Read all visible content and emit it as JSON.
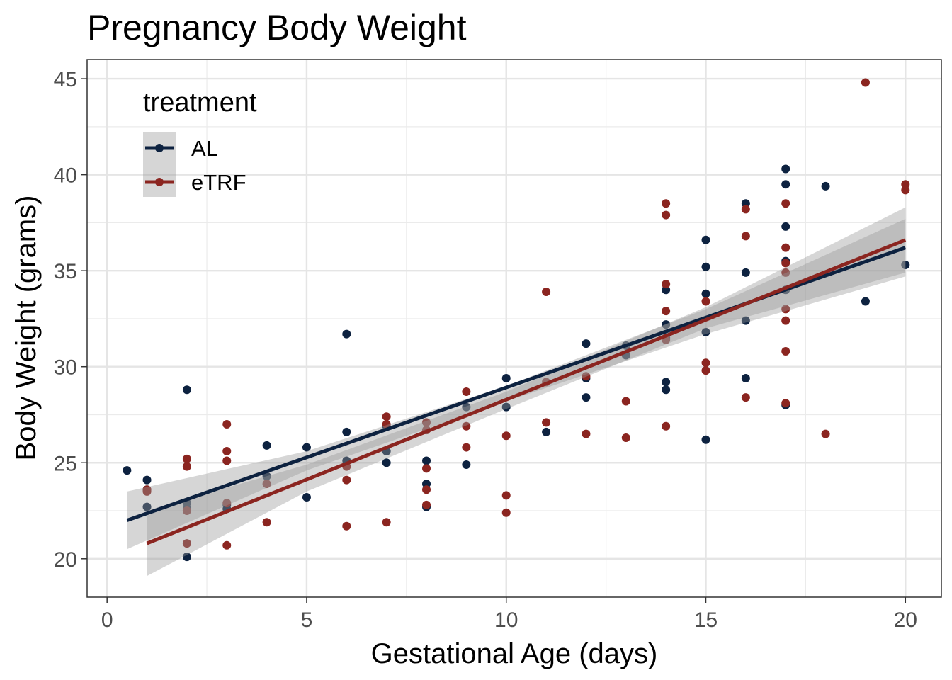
{
  "chart_data": {
    "type": "scatter",
    "title": "Pregnancy Body Weight",
    "xlabel": "Gestational Age (days)",
    "ylabel": "Body Weight (grams)",
    "xlim": [
      -0.5,
      20.9
    ],
    "ylim": [
      18,
      46
    ],
    "x_ticks": [
      0,
      5,
      10,
      15,
      20
    ],
    "y_ticks": [
      20,
      25,
      30,
      35,
      40,
      45
    ],
    "grid": true,
    "legend": {
      "title": "treatment",
      "placement": "top-left",
      "entries": [
        "AL",
        "eTRF"
      ]
    },
    "series": [
      {
        "name": "AL",
        "color": "#0d2240",
        "points": [
          [
            0.5,
            24.6
          ],
          [
            1,
            24.1
          ],
          [
            1,
            23.6
          ],
          [
            1,
            22.7
          ],
          [
            2,
            28.8
          ],
          [
            2,
            22.9
          ],
          [
            2,
            22.6
          ],
          [
            2,
            20.1
          ],
          [
            3,
            22.8
          ],
          [
            3,
            22.6
          ],
          [
            4,
            25.9
          ],
          [
            4,
            24.3
          ],
          [
            5,
            25.8
          ],
          [
            5,
            23.2
          ],
          [
            6,
            31.7
          ],
          [
            6,
            26.6
          ],
          [
            6,
            25.1
          ],
          [
            7,
            26.9
          ],
          [
            7,
            25.6
          ],
          [
            7,
            25.0
          ],
          [
            8,
            25.1
          ],
          [
            8,
            23.9
          ],
          [
            8,
            22.7
          ],
          [
            9,
            27.9
          ],
          [
            9,
            24.9
          ],
          [
            10,
            29.4
          ],
          [
            10,
            27.9
          ],
          [
            11,
            26.6
          ],
          [
            12,
            31.2
          ],
          [
            12,
            29.4
          ],
          [
            12,
            28.4
          ],
          [
            13,
            31.1
          ],
          [
            13,
            30.6
          ],
          [
            14,
            34.0
          ],
          [
            14,
            32.2
          ],
          [
            14,
            31.5
          ],
          [
            14,
            29.2
          ],
          [
            14,
            28.8
          ],
          [
            15,
            36.6
          ],
          [
            15,
            35.2
          ],
          [
            15,
            33.8
          ],
          [
            15,
            31.8
          ],
          [
            15,
            26.2
          ],
          [
            16,
            38.5
          ],
          [
            16,
            34.9
          ],
          [
            16,
            32.4
          ],
          [
            16,
            29.4
          ],
          [
            17,
            40.3
          ],
          [
            17,
            39.5
          ],
          [
            17,
            37.3
          ],
          [
            17,
            35.5
          ],
          [
            17,
            34.0
          ],
          [
            17,
            28.0
          ],
          [
            18,
            39.4
          ],
          [
            19,
            33.4
          ],
          [
            20,
            35.3
          ]
        ],
        "fit": {
          "x_start": 0.5,
          "x_end": 20,
          "y_start": 22.0,
          "y_end": 36.2
        },
        "band": {
          "x": [
            0.5,
            5,
            10,
            15,
            20
          ],
          "lower": [
            20.5,
            24.6,
            28.2,
            31.7,
            34.7
          ],
          "upper": [
            23.5,
            25.6,
            29.0,
            33.0,
            37.7
          ]
        }
      },
      {
        "name": "eTRF",
        "color": "#8b2520",
        "points": [
          [
            1,
            23.6
          ],
          [
            1,
            23.5
          ],
          [
            2,
            25.2
          ],
          [
            2,
            24.8
          ],
          [
            2,
            22.5
          ],
          [
            2,
            20.8
          ],
          [
            3,
            27.0
          ],
          [
            3,
            25.6
          ],
          [
            3,
            25.1
          ],
          [
            3,
            22.9
          ],
          [
            3,
            20.7
          ],
          [
            4,
            23.9
          ],
          [
            4,
            21.9
          ],
          [
            6,
            24.8
          ],
          [
            6,
            24.1
          ],
          [
            6,
            21.7
          ],
          [
            7,
            27.4
          ],
          [
            7,
            27.0
          ],
          [
            7,
            21.9
          ],
          [
            8,
            27.1
          ],
          [
            8,
            26.7
          ],
          [
            8,
            24.7
          ],
          [
            8,
            23.6
          ],
          [
            8,
            22.8
          ],
          [
            9,
            28.7
          ],
          [
            9,
            26.9
          ],
          [
            9,
            25.8
          ],
          [
            10,
            26.4
          ],
          [
            10,
            23.3
          ],
          [
            10,
            22.4
          ],
          [
            11,
            33.9
          ],
          [
            11,
            29.2
          ],
          [
            11,
            27.1
          ],
          [
            12,
            29.5
          ],
          [
            12,
            26.5
          ],
          [
            13,
            28.2
          ],
          [
            13,
            26.3
          ],
          [
            14,
            38.5
          ],
          [
            14,
            37.9
          ],
          [
            14,
            34.3
          ],
          [
            14,
            32.9
          ],
          [
            14,
            31.4
          ],
          [
            14,
            26.9
          ],
          [
            15,
            33.4
          ],
          [
            15,
            30.2
          ],
          [
            15,
            29.8
          ],
          [
            16,
            38.2
          ],
          [
            16,
            36.8
          ],
          [
            16,
            28.4
          ],
          [
            17,
            38.5
          ],
          [
            17,
            36.2
          ],
          [
            17,
            35.4
          ],
          [
            17,
            34.9
          ],
          [
            17,
            33.0
          ],
          [
            17,
            32.4
          ],
          [
            17,
            30.8
          ],
          [
            17,
            28.1
          ],
          [
            18,
            26.5
          ],
          [
            19,
            44.8
          ],
          [
            20,
            39.5
          ],
          [
            20,
            39.2
          ]
        ],
        "fit": {
          "x_start": 1,
          "x_end": 20,
          "y_start": 20.8,
          "y_end": 36.6
        },
        "band": {
          "x": [
            1,
            5,
            10,
            15,
            20
          ],
          "lower": [
            19.1,
            23.5,
            27.8,
            32.0,
            34.9
          ],
          "upper": [
            22.5,
            24.9,
            28.7,
            33.1,
            38.3
          ]
        }
      }
    ]
  }
}
